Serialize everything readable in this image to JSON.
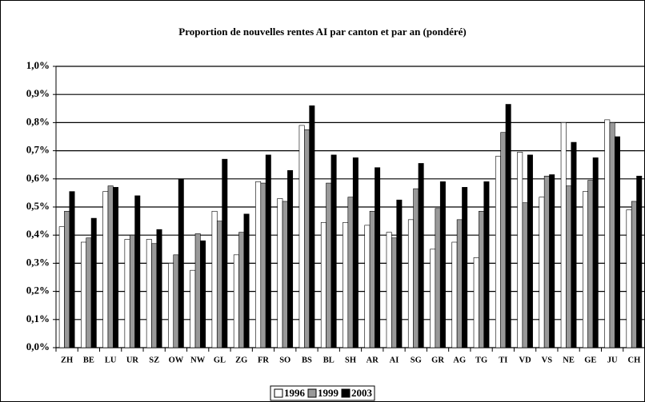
{
  "chart_data": {
    "type": "bar",
    "title": "Proportion de nouvelles rentes AI par canton et par an (pondéré)",
    "categories": [
      "ZH",
      "BE",
      "LU",
      "UR",
      "SZ",
      "OW",
      "NW",
      "GL",
      "ZG",
      "FR",
      "SO",
      "BS",
      "BL",
      "SH",
      "AR",
      "AI",
      "SG",
      "GR",
      "AG",
      "TG",
      "TI",
      "VD",
      "VS",
      "NE",
      "GE",
      "JU",
      "CH"
    ],
    "series": [
      {
        "name": "1996",
        "color": "#ffffff",
        "values": [
          0.43,
          0.375,
          0.555,
          0.385,
          0.385,
          0.3,
          0.275,
          0.485,
          0.33,
          0.59,
          0.53,
          0.79,
          0.445,
          0.445,
          0.435,
          0.41,
          0.455,
          0.35,
          0.375,
          0.32,
          0.68,
          0.695,
          0.535,
          0.8,
          0.555,
          0.81,
          0.49
        ]
      },
      {
        "name": "1999",
        "color": "#999999",
        "values": [
          0.485,
          0.39,
          0.575,
          0.4,
          0.37,
          0.33,
          0.405,
          0.45,
          0.41,
          0.585,
          0.52,
          0.775,
          0.585,
          0.535,
          0.485,
          0.39,
          0.565,
          0.495,
          0.455,
          0.485,
          0.765,
          0.515,
          0.61,
          0.575,
          0.595,
          0.8,
          0.52
        ]
      },
      {
        "name": "2003",
        "color": "#000000",
        "values": [
          0.555,
          0.46,
          0.57,
          0.54,
          0.42,
          0.6,
          0.38,
          0.67,
          0.475,
          0.685,
          0.63,
          0.86,
          0.685,
          0.675,
          0.64,
          0.525,
          0.655,
          0.59,
          0.57,
          0.59,
          0.865,
          0.685,
          0.615,
          0.73,
          0.675,
          0.75,
          0.61
        ]
      }
    ],
    "ylim": [
      0,
      1.0
    ],
    "yticks": [
      {
        "value": 0,
        "label": "0,0%"
      },
      {
        "value": 0.1,
        "label": "0,1%"
      },
      {
        "value": 0.2,
        "label": "0,2%"
      },
      {
        "value": 0.3,
        "label": "0,3%"
      },
      {
        "value": 0.4,
        "label": "0,4%"
      },
      {
        "value": 0.5,
        "label": "0,5%"
      },
      {
        "value": 0.6,
        "label": "0,6%"
      },
      {
        "value": 0.7,
        "label": "0,7%"
      },
      {
        "value": 0.8,
        "label": "0,8%"
      },
      {
        "value": 0.9,
        "label": "0,9%"
      },
      {
        "value": 1.0,
        "label": "1,0%"
      }
    ],
    "grid": true,
    "legend": "bottom"
  }
}
